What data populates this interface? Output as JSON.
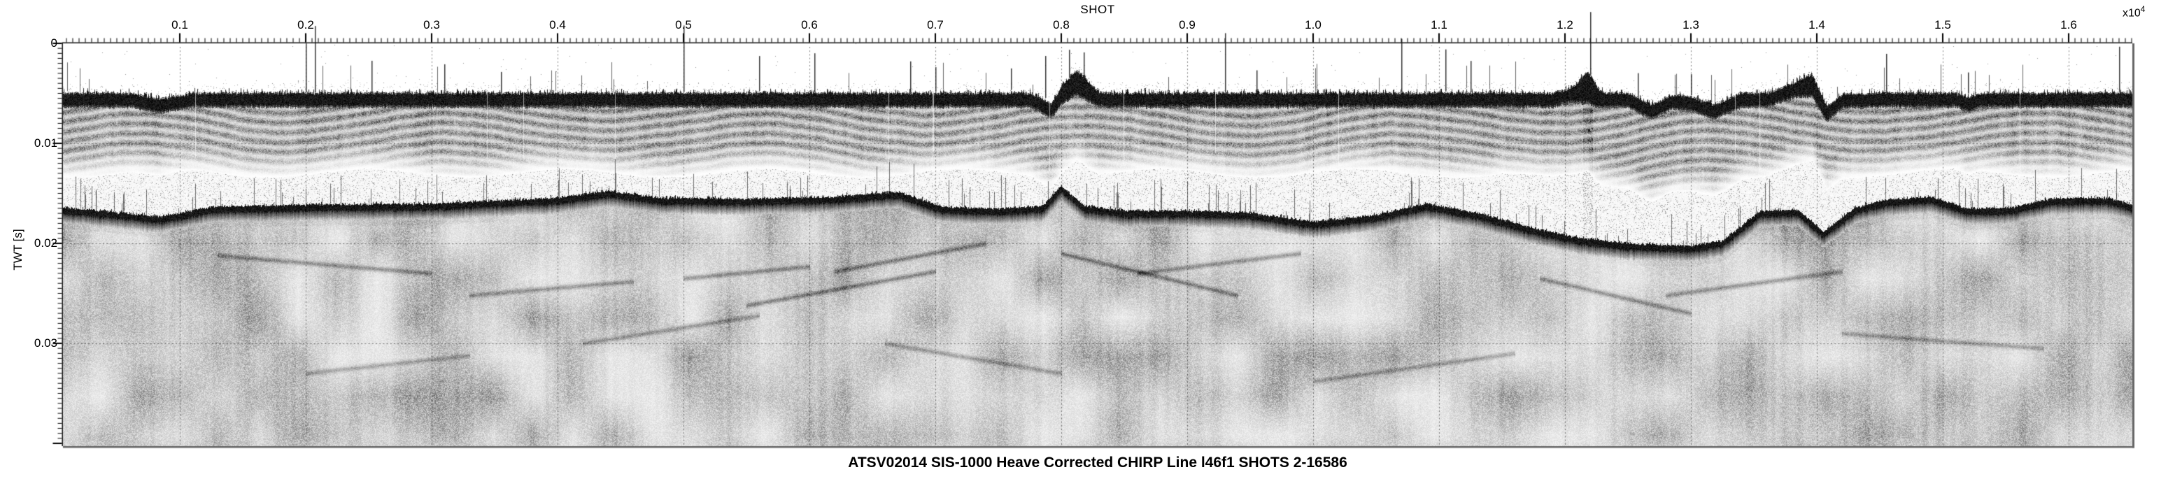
{
  "chart_data": {
    "type": "heatmap",
    "subtype": "seismic-reflection-profile",
    "title": "ATSV02014 SIS-1000 Heave Corrected CHIRP Line l46f1 SHOTS 2-16586",
    "x_axis": {
      "label": "SHOT",
      "multiplier_prefix": "x10",
      "multiplier_exponent": "4",
      "range": [
        0,
        1.65
      ],
      "major_tick_values": [
        0.1,
        0.2,
        0.3,
        0.4,
        0.5,
        0.6,
        0.7,
        0.8,
        0.9,
        1.0,
        1.1,
        1.2,
        1.3,
        1.4,
        1.5,
        1.6
      ],
      "major_tick_labels": [
        "0.1",
        "0.2",
        "0.3",
        "0.4",
        "0.5",
        "0.6",
        "0.7",
        "0.8",
        "0.9",
        "1.0",
        "1.1",
        "1.2",
        "1.3",
        "1.4",
        "1.5",
        "1.6"
      ],
      "minor_tick_step": 0.005
    },
    "y_axis": {
      "label": "TWT [s]",
      "range": [
        0,
        0.0403
      ],
      "major_tick_values": [
        0,
        0.01,
        0.02,
        0.03
      ],
      "major_tick_labels": [
        "0",
        "0.01",
        "0.02",
        "0.03"
      ],
      "minor_tick_step": 0.0005
    },
    "grid": {
      "style": "dotted",
      "vertical_at_x_major": true,
      "horizontal_at_y_major": true
    },
    "colors": {
      "ink": "#000000",
      "background": "#ffffff"
    },
    "horizons": {
      "seafloor_reflector": {
        "units": {
          "x": "shots x10^4",
          "twt": "s"
        },
        "x": [
          0.0,
          0.06,
          0.084,
          0.11,
          0.3,
          0.6,
          0.775,
          0.792,
          0.8,
          0.812,
          0.83,
          1.0,
          1.19,
          1.21,
          1.218,
          1.228,
          1.25,
          1.268,
          1.285,
          1.3,
          1.318,
          1.34,
          1.36,
          1.385,
          1.396,
          1.408,
          1.42,
          1.45,
          1.51,
          1.52,
          1.53,
          1.6,
          1.66
        ],
        "twt": [
          0.0057,
          0.0057,
          0.0063,
          0.0057,
          0.0057,
          0.0057,
          0.0057,
          0.0068,
          0.0052,
          0.004,
          0.0057,
          0.0057,
          0.0057,
          0.005,
          0.0045,
          0.0057,
          0.0057,
          0.0069,
          0.0059,
          0.0061,
          0.0069,
          0.0057,
          0.0057,
          0.0046,
          0.0043,
          0.0071,
          0.0058,
          0.0057,
          0.0057,
          0.0062,
          0.0057,
          0.0057,
          0.0057
        ]
      },
      "sub_bottom_reflector": {
        "units": {
          "x": "shots x10^4",
          "twt": "s"
        },
        "x": [
          0.0,
          0.045,
          0.085,
          0.125,
          0.2,
          0.3,
          0.4,
          0.44,
          0.48,
          0.55,
          0.62,
          0.67,
          0.705,
          0.75,
          0.785,
          0.8,
          0.818,
          0.85,
          0.9,
          0.95,
          1.0,
          1.05,
          1.09,
          1.13,
          1.17,
          1.21,
          1.25,
          1.3,
          1.325,
          1.355,
          1.385,
          1.405,
          1.43,
          1.455,
          1.49,
          1.52,
          1.555,
          1.585,
          1.63,
          1.66
        ],
        "twt": [
          0.0166,
          0.0171,
          0.0176,
          0.0166,
          0.0164,
          0.0163,
          0.0157,
          0.015,
          0.0157,
          0.0158,
          0.0156,
          0.0151,
          0.0166,
          0.0168,
          0.0165,
          0.0145,
          0.0165,
          0.017,
          0.017,
          0.0172,
          0.0181,
          0.0174,
          0.0163,
          0.0172,
          0.0186,
          0.0197,
          0.0203,
          0.0205,
          0.02,
          0.017,
          0.0169,
          0.0191,
          0.0167,
          0.0159,
          0.0156,
          0.0168,
          0.0167,
          0.0158,
          0.0157,
          0.0167
        ]
      }
    }
  }
}
